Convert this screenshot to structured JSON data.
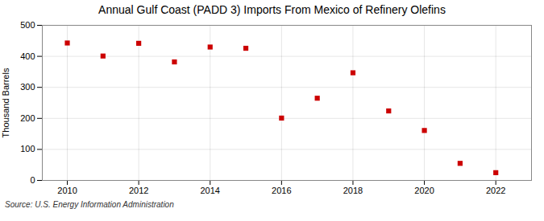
{
  "chart_data": {
    "type": "scatter",
    "title": "Annual Gulf Coast (PADD 3) Imports From Mexico of Refinery Olefins",
    "ylabel": "Thousand Barrels",
    "annotations": [
      "Source: U.S. Energy Information Administration"
    ],
    "x": [
      2010,
      2011,
      2012,
      2013,
      2014,
      2015,
      2016,
      2017,
      2018,
      2019,
      2020,
      2021,
      2022
    ],
    "values": [
      443,
      401,
      442,
      382,
      430,
      426,
      201,
      265,
      347,
      224,
      161,
      55,
      25
    ],
    "color": "#cc0000",
    "marker": "square",
    "xlim": [
      2009.3,
      2023
    ],
    "xticks": [
      2010,
      2012,
      2014,
      2016,
      2018,
      2020,
      2022
    ],
    "ylim": [
      0,
      500
    ],
    "yticks": [
      0,
      100,
      200,
      300,
      400,
      500
    ],
    "grid": true
  }
}
